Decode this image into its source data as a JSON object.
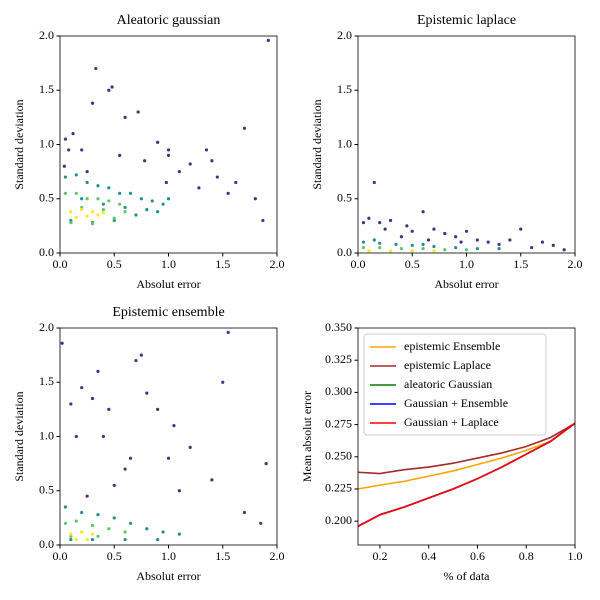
{
  "chart_data": [
    {
      "type": "scatter",
      "title": "Aleatoric gaussian",
      "xlabel": "Absolut error",
      "ylabel": "Standard deviation",
      "xlim": [
        0,
        2
      ],
      "ylim": [
        0,
        2
      ],
      "xticks": [
        {
          "value": 0,
          "label": "0.0"
        },
        0.5,
        {
          "value": 1,
          "label": "1.0"
        },
        1.5,
        {
          "value": 2,
          "label": "2.0"
        }
      ],
      "yticks": [
        {
          "value": 0,
          "label": "0.0"
        },
        0.5,
        {
          "value": 1,
          "label": "1.0"
        },
        1.5,
        {
          "value": 2,
          "label": "2.0"
        }
      ],
      "series": [
        {
          "color": "#46327e",
          "x": [
            0.05,
            0.12,
            0.2,
            0.3,
            0.33,
            0.45,
            0.48,
            0.6,
            0.72,
            0.78,
            0.9,
            1.0,
            1.1,
            1.2,
            1.28,
            1.35,
            1.45,
            1.55,
            1.62,
            1.7,
            1.8,
            1.87,
            1.92,
            0.04,
            0.08,
            1.0,
            1.4,
            0.98,
            0.25,
            0.55
          ],
          "y": [
            1.05,
            1.1,
            0.95,
            1.38,
            1.7,
            1.5,
            1.53,
            1.25,
            1.3,
            0.85,
            1.02,
            0.9,
            0.75,
            0.82,
            0.6,
            0.95,
            0.7,
            0.55,
            0.65,
            1.15,
            0.5,
            0.3,
            1.96,
            0.8,
            0.95,
            0.95,
            0.85,
            0.65,
            0.75,
            0.9
          ]
        },
        {
          "color": "#21918c",
          "x": [
            0.05,
            0.15,
            0.25,
            0.35,
            0.45,
            0.55,
            0.65,
            0.75,
            0.85,
            0.95,
            0.1,
            0.3,
            0.5,
            0.7,
            0.9,
            0.2,
            0.4,
            0.6,
            0.8,
            1.0
          ],
          "y": [
            0.7,
            0.72,
            0.65,
            0.62,
            0.6,
            0.55,
            0.55,
            0.5,
            0.48,
            0.45,
            0.3,
            0.28,
            0.3,
            0.35,
            0.38,
            0.5,
            0.45,
            0.42,
            0.4,
            0.5
          ]
        },
        {
          "color": "#5ec962",
          "x": [
            0.05,
            0.15,
            0.25,
            0.35,
            0.45,
            0.55,
            0.1,
            0.3,
            0.5,
            0.2,
            0.4,
            0.6
          ],
          "y": [
            0.55,
            0.55,
            0.5,
            0.5,
            0.48,
            0.45,
            0.28,
            0.27,
            0.32,
            0.42,
            0.4,
            0.38
          ]
        },
        {
          "color": "#fde725",
          "x": [
            0.1,
            0.2,
            0.3,
            0.4,
            0.15,
            0.25,
            0.35
          ],
          "y": [
            0.38,
            0.4,
            0.38,
            0.37,
            0.33,
            0.34,
            0.35
          ]
        }
      ]
    },
    {
      "type": "scatter",
      "title": "Epistemic laplace",
      "xlabel": "Absolut error",
      "ylabel": "Standard deviation",
      "xlim": [
        0,
        2
      ],
      "ylim": [
        0,
        2
      ],
      "xticks": [
        {
          "value": 0,
          "label": "0.0"
        },
        0.5,
        {
          "value": 1,
          "label": "1.0"
        },
        1.5,
        {
          "value": 2,
          "label": "2.0"
        }
      ],
      "yticks": [
        {
          "value": 0,
          "label": "0.0"
        },
        0.5,
        {
          "value": 1,
          "label": "1.0"
        },
        1.5,
        {
          "value": 2,
          "label": "2.0"
        }
      ],
      "series": [
        {
          "color": "#46327e",
          "x": [
            0.1,
            0.15,
            0.2,
            0.3,
            0.45,
            0.5,
            0.6,
            0.7,
            0.8,
            0.9,
            1.0,
            1.1,
            1.2,
            1.3,
            1.4,
            1.5,
            1.6,
            1.7,
            1.8,
            1.9,
            0.05,
            0.25,
            0.4,
            0.65,
            0.95
          ],
          "y": [
            0.32,
            0.65,
            0.28,
            0.3,
            0.25,
            0.2,
            0.38,
            0.22,
            0.18,
            0.15,
            0.2,
            0.12,
            0.1,
            0.08,
            0.12,
            0.22,
            0.05,
            0.1,
            0.07,
            0.03,
            0.28,
            0.22,
            0.15,
            0.12,
            0.1
          ]
        },
        {
          "color": "#21918c",
          "x": [
            0.05,
            0.2,
            0.35,
            0.5,
            0.7,
            0.9,
            1.1,
            1.3,
            0.15,
            0.6
          ],
          "y": [
            0.1,
            0.09,
            0.08,
            0.07,
            0.06,
            0.05,
            0.04,
            0.04,
            0.12,
            0.08
          ]
        },
        {
          "color": "#5ec962",
          "x": [
            0.05,
            0.2,
            0.4,
            0.6,
            0.8,
            1.0
          ],
          "y": [
            0.05,
            0.05,
            0.04,
            0.04,
            0.03,
            0.03
          ]
        },
        {
          "color": "#fde725",
          "x": [
            0.1,
            0.3,
            0.5,
            0.7
          ],
          "y": [
            0.02,
            0.02,
            0.02,
            0.02
          ]
        }
      ]
    },
    {
      "type": "scatter",
      "title": "Epistemic ensemble",
      "xlabel": "Absolut error",
      "ylabel": "Standard deviation",
      "xlim": [
        0,
        2
      ],
      "ylim": [
        0,
        2
      ],
      "xticks": [
        {
          "value": 0,
          "label": "0.0"
        },
        0.5,
        {
          "value": 1,
          "label": "1.0"
        },
        1.5,
        {
          "value": 2,
          "label": "2.0"
        }
      ],
      "yticks": [
        {
          "value": 0,
          "label": "0.0"
        },
        0.5,
        {
          "value": 1,
          "label": "1.0"
        },
        1.5,
        {
          "value": 2,
          "label": "2.0"
        }
      ],
      "series": [
        {
          "color": "#46327e",
          "x": [
            0.02,
            0.1,
            0.15,
            0.2,
            0.3,
            0.35,
            0.4,
            0.45,
            0.6,
            0.7,
            0.75,
            0.8,
            0.9,
            1.0,
            1.05,
            1.2,
            1.4,
            1.5,
            1.55,
            1.7,
            1.85,
            1.9,
            0.5,
            0.65,
            0.25,
            1.1
          ],
          "y": [
            1.86,
            1.3,
            1.0,
            1.45,
            1.35,
            1.6,
            1.0,
            1.25,
            0.7,
            1.7,
            1.75,
            1.4,
            1.25,
            0.8,
            1.1,
            0.9,
            0.6,
            1.5,
            1.96,
            0.3,
            0.2,
            0.75,
            0.55,
            0.8,
            0.45,
            0.5
          ]
        },
        {
          "color": "#21918c",
          "x": [
            0.05,
            0.2,
            0.35,
            0.5,
            0.65,
            0.8,
            0.95,
            1.1,
            0.1,
            0.3,
            0.6,
            0.9
          ],
          "y": [
            0.35,
            0.3,
            0.28,
            0.25,
            0.2,
            0.15,
            0.12,
            0.1,
            0.05,
            0.05,
            0.05,
            0.05
          ]
        },
        {
          "color": "#5ec962",
          "x": [
            0.05,
            0.15,
            0.3,
            0.45,
            0.6,
            0.1,
            0.35
          ],
          "y": [
            0.2,
            0.22,
            0.18,
            0.15,
            0.12,
            0.08,
            0.08
          ]
        },
        {
          "color": "#fde725",
          "x": [
            0.1,
            0.2,
            0.3,
            0.15,
            0.25
          ],
          "y": [
            0.1,
            0.12,
            0.1,
            0.05,
            0.05
          ]
        }
      ]
    },
    {
      "type": "line",
      "xlabel": "% of data",
      "ylabel": "Mean absolut error",
      "legend": "upper left",
      "xlim": [
        0.11,
        1.0
      ],
      "ylim": [
        0.1815,
        0.35
      ],
      "xticks": [
        0.2,
        0.4,
        0.6,
        0.8,
        {
          "value": 1.0,
          "label": "1.0"
        }
      ],
      "yticks": [
        {
          "value": 0.2,
          "label": "0.200"
        },
        0.225,
        {
          "value": 0.25,
          "label": "0.250"
        },
        0.275,
        {
          "value": 0.3,
          "label": "0.300"
        },
        0.325,
        {
          "value": 0.35,
          "label": "0.350"
        }
      ],
      "x": [
        0.11,
        0.2,
        0.3,
        0.4,
        0.5,
        0.6,
        0.7,
        0.8,
        0.9,
        1.0
      ],
      "series": [
        {
          "name": "epistemic Ensemble",
          "color": "#ffa500",
          "values": [
            0.225,
            0.228,
            0.231,
            0.235,
            0.239,
            0.244,
            0.249,
            0.255,
            0.262,
            0.276
          ]
        },
        {
          "name": "epistemic Laplace",
          "color": "#a52a2a",
          "values": [
            0.238,
            0.237,
            0.24,
            0.242,
            0.245,
            0.249,
            0.253,
            0.258,
            0.265,
            0.276
          ]
        },
        {
          "name": "aleatoric Gaussian",
          "color": "#008000",
          "values": [
            0.196,
            0.205,
            0.211,
            0.218,
            0.225,
            0.233,
            0.242,
            0.252,
            0.262,
            0.276
          ]
        },
        {
          "name": "Gaussian + Ensemble",
          "color": "#0000ff",
          "values": [
            0.196,
            0.205,
            0.211,
            0.218,
            0.225,
            0.233,
            0.242,
            0.252,
            0.262,
            0.276
          ]
        },
        {
          "name": "Gaussian + Laplace",
          "color": "#ff0000",
          "values": [
            0.196,
            0.205,
            0.211,
            0.218,
            0.225,
            0.233,
            0.242,
            0.252,
            0.262,
            0.276
          ]
        }
      ]
    }
  ]
}
